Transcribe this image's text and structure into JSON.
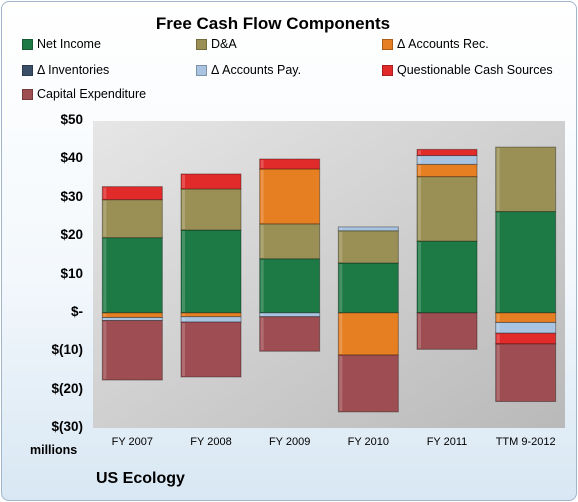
{
  "chart_data": {
    "type": "bar",
    "stacked": true,
    "title": "Free Cash Flow Components",
    "units_label": "millions",
    "company": "US Ecology",
    "categories": [
      "FY 2007",
      "FY 2008",
      "FY 2009",
      "FY 2010",
      "FY 2011",
      "TTM 9-2012"
    ],
    "ylim": [
      -30,
      50
    ],
    "yticks": [
      -30,
      -20,
      -10,
      0,
      10,
      20,
      30,
      40,
      50
    ],
    "ytick_labels": [
      "$(30)",
      "$(20)",
      "$(10)",
      "$-",
      "$10",
      "$20",
      "$30",
      "$40",
      "$50"
    ],
    "grid": false,
    "legend_position": "top",
    "series": [
      {
        "name": "Net Income",
        "color": "#1e7a45",
        "values": [
          19.6,
          21.6,
          14.1,
          13.0,
          18.7,
          26.4
        ]
      },
      {
        "name": "D&A",
        "color": "#9a9055",
        "values": [
          9.9,
          10.7,
          9.1,
          8.4,
          16.8,
          16.8
        ]
      },
      {
        "name": "Δ Accounts Rec.",
        "color": "#e67e22",
        "values": [
          -1.2,
          -1.0,
          14.3,
          -11.0,
          3.2,
          -2.5
        ]
      },
      {
        "name": "Δ Inventories",
        "color": "#3a4f66",
        "values": [
          0,
          0,
          0,
          0,
          0,
          0
        ]
      },
      {
        "name": "Δ Accounts Pay.",
        "color": "#a9c4e0",
        "values": [
          -0.8,
          -1.4,
          -1.0,
          1.0,
          2.3,
          -2.8
        ]
      },
      {
        "name": "Questionable Cash Sources",
        "color": "#e12b2b",
        "values": [
          3.4,
          3.9,
          2.6,
          0,
          1.6,
          -2.8
        ]
      },
      {
        "name": "Capital Expenditure",
        "color": "#9e4e52",
        "values": [
          -15.5,
          -14.3,
          -9.0,
          -14.8,
          -9.5,
          -15.0
        ]
      }
    ]
  }
}
